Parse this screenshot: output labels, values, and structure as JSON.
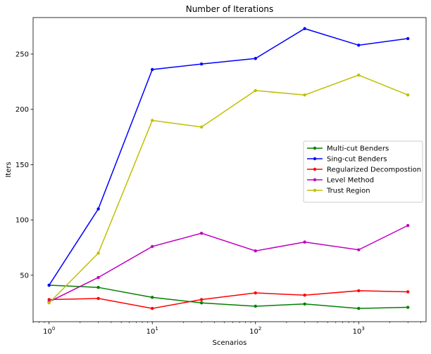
{
  "chart_data": {
    "type": "line",
    "title": "Number of Iterations",
    "xlabel": "Scenarios",
    "ylabel": "Iters",
    "x_scale": "log",
    "xlim": [
      0.7,
      4500
    ],
    "ylim": [
      8,
      283
    ],
    "x": [
      1,
      3,
      10,
      30,
      100,
      300,
      1000,
      3000
    ],
    "x_ticks": [
      {
        "value": 1,
        "base": "10",
        "exp": "0"
      },
      {
        "value": 10,
        "base": "10",
        "exp": "1"
      },
      {
        "value": 100,
        "base": "10",
        "exp": "2"
      },
      {
        "value": 1000,
        "base": "10",
        "exp": "3"
      }
    ],
    "y_ticks": [
      50,
      100,
      150,
      200,
      250
    ],
    "y_tick_labels": [
      "50",
      "100",
      "150",
      "200",
      "250"
    ],
    "grid": false,
    "legend_position": "center-right",
    "series": [
      {
        "name": "Multi-cut Benders",
        "color": "#008000",
        "values": [
          41,
          39,
          30,
          25,
          22,
          24,
          20,
          21
        ]
      },
      {
        "name": "Sing-cut Benders",
        "color": "#0000ff",
        "values": [
          41,
          110,
          236,
          241,
          246,
          273,
          258,
          264
        ]
      },
      {
        "name": "Regularized Decompostion",
        "color": "#ff0000",
        "values": [
          28,
          29,
          20,
          28,
          34,
          32,
          36,
          35
        ]
      },
      {
        "name": "Level Method",
        "color": "#bf00bf",
        "values": [
          26,
          48,
          76,
          88,
          72,
          80,
          73,
          95
        ]
      },
      {
        "name": "Trust Region",
        "color": "#bfbf00",
        "values": [
          25,
          70,
          190,
          184,
          217,
          213,
          231,
          213
        ]
      }
    ]
  }
}
